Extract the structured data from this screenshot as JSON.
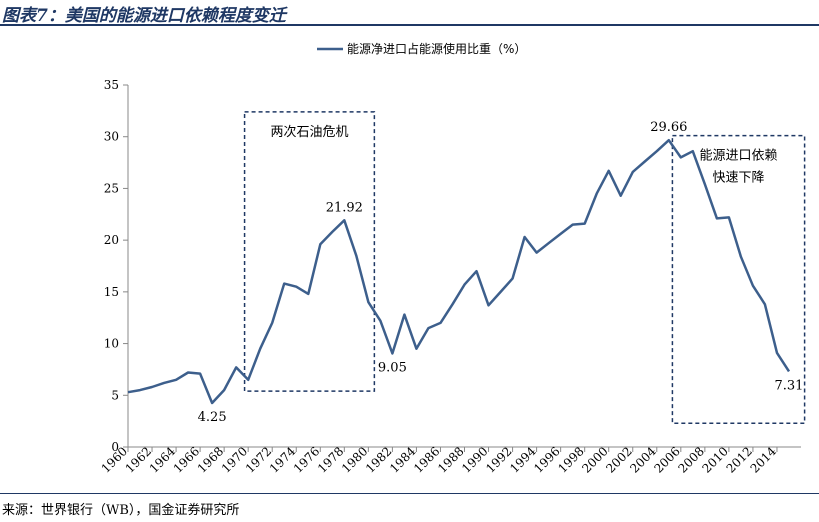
{
  "header": {
    "title": "图表7：美国的能源进口依赖程度变迁"
  },
  "footer": {
    "source": "来源：世界银行（WB），国金证券研究所"
  },
  "colors": {
    "series": "#3d5f8c",
    "accent": "#1f3864",
    "box": "#1f3864"
  },
  "chart_data": {
    "type": "line",
    "title": "",
    "xlabel": "",
    "ylabel": "",
    "ylim": [
      0,
      35
    ],
    "yticks": [
      0,
      5,
      10,
      15,
      20,
      25,
      30,
      35
    ],
    "xlim": [
      1960,
      2015
    ],
    "xticks": [
      1960,
      1962,
      1964,
      1966,
      1968,
      1970,
      1972,
      1974,
      1976,
      1978,
      1980,
      1982,
      1984,
      1986,
      1988,
      1990,
      1992,
      1994,
      1996,
      1998,
      2000,
      2002,
      2004,
      2006,
      2008,
      2010,
      2012,
      2014
    ],
    "grid": false,
    "legend_position": "top-center",
    "series": [
      {
        "name": "能源净进口占能源使用比重（%）",
        "x": [
          1960,
          1961,
          1962,
          1963,
          1964,
          1965,
          1966,
          1967,
          1968,
          1969,
          1970,
          1971,
          1972,
          1973,
          1974,
          1975,
          1976,
          1977,
          1978,
          1979,
          1980,
          1981,
          1982,
          1983,
          1984,
          1985,
          1986,
          1987,
          1988,
          1989,
          1990,
          1991,
          1992,
          1993,
          1994,
          1995,
          1996,
          1997,
          1998,
          1999,
          2000,
          2001,
          2002,
          2003,
          2004,
          2005,
          2006,
          2007,
          2008,
          2009,
          2010,
          2011,
          2012,
          2013,
          2014,
          2015
        ],
        "values": [
          5.3,
          5.5,
          5.8,
          6.2,
          6.5,
          7.2,
          7.1,
          4.25,
          5.5,
          7.7,
          6.5,
          9.5,
          12.0,
          15.8,
          15.5,
          14.8,
          19.6,
          20.8,
          21.92,
          18.5,
          14.0,
          12.2,
          9.05,
          12.8,
          9.5,
          11.5,
          12.0,
          13.8,
          15.7,
          17.0,
          13.7,
          15.0,
          16.3,
          20.3,
          18.8,
          19.7,
          20.6,
          21.5,
          21.6,
          24.5,
          26.7,
          24.3,
          26.6,
          27.6,
          28.6,
          29.66,
          28.0,
          28.6,
          25.4,
          22.1,
          22.2,
          18.4,
          15.6,
          13.8,
          9.1,
          7.31
        ]
      }
    ],
    "point_labels": [
      {
        "x": 1967,
        "y": 4.25,
        "text": "4.25",
        "position": "below"
      },
      {
        "x": 1978,
        "y": 21.92,
        "text": "21.92",
        "position": "above"
      },
      {
        "x": 1982,
        "y": 9.05,
        "text": "9.05",
        "position": "below"
      },
      {
        "x": 2005,
        "y": 29.66,
        "text": "29.66",
        "position": "above"
      },
      {
        "x": 2015,
        "y": 7.31,
        "text": "7.31",
        "position": "below"
      }
    ],
    "annotation_boxes": [
      {
        "label_lines": [
          "两次石油危机"
        ],
        "x_from": 1969.7,
        "x_to": 1980.5,
        "y_from": 5.4,
        "y_to": 32.4
      },
      {
        "label_lines": [
          "能源进口依赖",
          "快速下降"
        ],
        "x_from": 2005.3,
        "x_to": 2016.3,
        "y_from": 2.3,
        "y_to": 30.1
      }
    ]
  }
}
